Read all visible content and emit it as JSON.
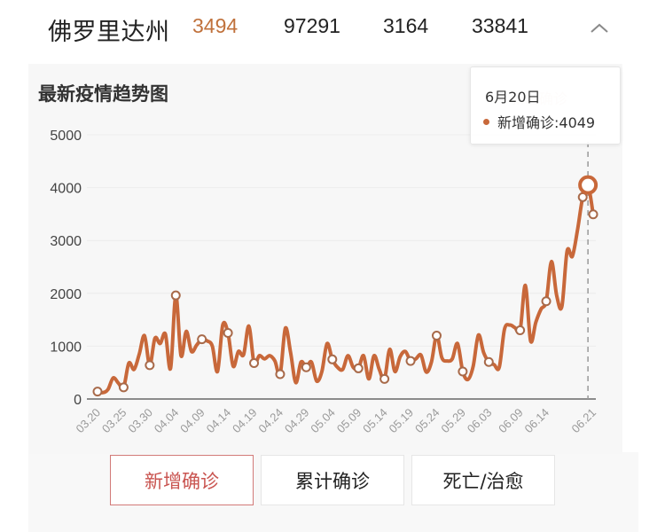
{
  "header": {
    "region": "佛罗里达州",
    "stats": [
      {
        "value": "3494",
        "accent": true
      },
      {
        "value": "97291",
        "accent": false
      },
      {
        "value": "3164",
        "accent": false
      },
      {
        "value": "33841",
        "accent": false
      }
    ],
    "collapse_icon": "chevron-up-icon"
  },
  "panel": {
    "title": "最新疫情趋势图",
    "legend_label": "新增确诊"
  },
  "tooltip": {
    "date": "6月20日",
    "series_label": "新增确诊",
    "value": "4049",
    "text": "新增确诊:4049"
  },
  "tabs": [
    {
      "label": "新增确诊",
      "active": true
    },
    {
      "label": "累计确诊",
      "active": false
    },
    {
      "label": "死亡/治愈",
      "active": false
    }
  ],
  "colors": {
    "line": "#c8683a",
    "accent_text": "#c0713b",
    "active_tab": "#c95450",
    "panel_bg": "#f7f7f7"
  },
  "chart_data": {
    "type": "line",
    "title": "最新疫情趋势图",
    "xlabel": "",
    "ylabel": "",
    "ylim": [
      0,
      5000
    ],
    "yticks": [
      0,
      1000,
      2000,
      3000,
      4000,
      5000
    ],
    "xtick_labels": [
      "03.20",
      "03.25",
      "03.30",
      "04.04",
      "04.09",
      "04.14",
      "04.19",
      "04.24",
      "04.29",
      "05.04",
      "05.09",
      "05.14",
      "05.19",
      "05.24",
      "05.29",
      "06.03",
      "06.09",
      "06.14",
      "06.21"
    ],
    "legend": [
      "新增确诊"
    ],
    "grid": true,
    "start_date": "03.20",
    "end_date": "06.21",
    "highlight": {
      "date": "06.20",
      "value": 4049
    },
    "series": [
      {
        "name": "新增确诊",
        "values": [
          140,
          120,
          180,
          400,
          300,
          220,
          680,
          560,
          850,
          1200,
          640,
          1150,
          1050,
          1230,
          580,
          1960,
          820,
          1280,
          900,
          1020,
          1130,
          1100,
          1000,
          520,
          1400,
          1250,
          620,
          900,
          840,
          1380,
          680,
          820,
          760,
          820,
          720,
          470,
          1340,
          880,
          310,
          700,
          600,
          700,
          340,
          520,
          1050,
          750,
          600,
          560,
          820,
          600,
          580,
          820,
          380,
          820,
          560,
          380,
          940,
          520,
          800,
          900,
          720,
          760,
          830,
          510,
          700,
          1200,
          780,
          720,
          760,
          1050,
          520,
          370,
          620,
          1210,
          880,
          700,
          650,
          600,
          1320,
          1400,
          1350,
          1300,
          2150,
          1100,
          1450,
          1700,
          1850,
          2600,
          1960,
          1750,
          2800,
          2700,
          3200,
          3820,
          4049,
          3494
        ]
      }
    ]
  }
}
